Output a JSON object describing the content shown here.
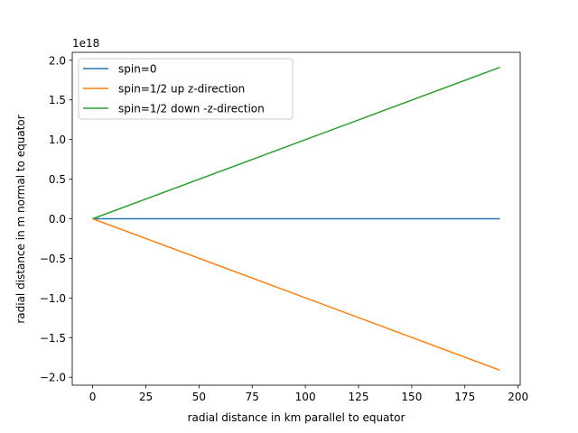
{
  "chart_data": {
    "type": "line",
    "xlabel": "radial distance in km parallel to equator",
    "ylabel": "radial distance in m normal to equator",
    "offset_text": "1e18",
    "xlim": [
      -9.6,
      201.0
    ],
    "ylim": [
      -2.1,
      2.1
    ],
    "x_ticks": [
      0,
      25,
      50,
      75,
      100,
      125,
      150,
      175,
      200
    ],
    "x_tick_labels": [
      "0",
      "25",
      "50",
      "75",
      "100",
      "125",
      "150",
      "175",
      "200"
    ],
    "y_ticks": [
      -2.0,
      -1.5,
      -1.0,
      -0.5,
      0.0,
      0.5,
      1.0,
      1.5,
      2.0
    ],
    "y_tick_labels": [
      "−2.0",
      "−1.5",
      "−1.0",
      "−0.5",
      "0.0",
      "0.5",
      "1.0",
      "1.5",
      "2.0"
    ],
    "grid": false,
    "legend_position": "top-left",
    "series": [
      {
        "name": "spin=0",
        "color": "#1f77b4",
        "x": [
          0,
          191.4
        ],
        "y": [
          0.0,
          0.0
        ]
      },
      {
        "name": "spin=1/2 up z-direction",
        "color": "#ff7f0e",
        "x": [
          0,
          191.4
        ],
        "y": [
          0.0,
          -1.91
        ]
      },
      {
        "name": "spin=1/2 down -z-direction",
        "color": "#2ca02c",
        "x": [
          0,
          191.4
        ],
        "y": [
          0.0,
          1.91
        ]
      }
    ]
  }
}
